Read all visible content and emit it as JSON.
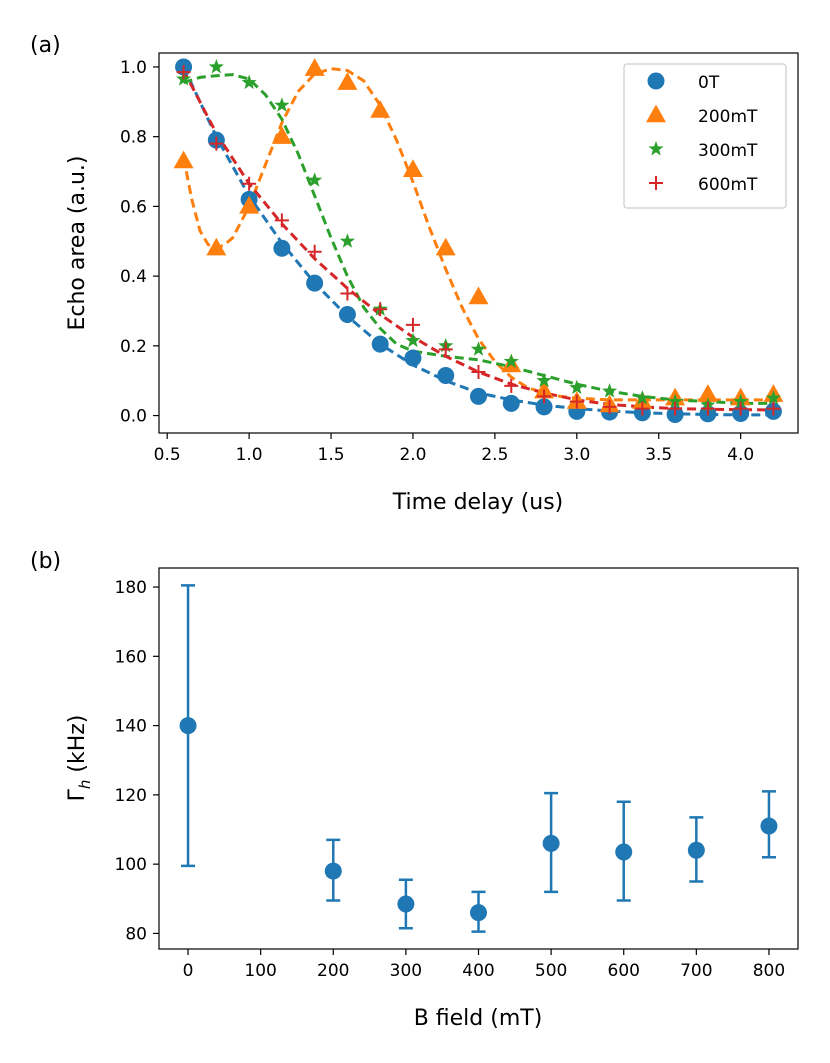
{
  "chart_data": [
    {
      "panel_label": "(a)",
      "type": "scatter",
      "xlabel": "Time delay (us)",
      "ylabel": "Echo area (a.u.)",
      "xlim": [
        0.45,
        4.35
      ],
      "ylim": [
        -0.05,
        1.04
      ],
      "xticks": [
        "0.5",
        "1.0",
        "1.5",
        "2.0",
        "2.5",
        "3.0",
        "3.5",
        "4.0"
      ],
      "yticks": [
        "0.0",
        "0.2",
        "0.4",
        "0.6",
        "0.8",
        "1.0"
      ],
      "legend_position": "top-right",
      "series": [
        {
          "name": "0T",
          "color": "#1f77b4",
          "marker": "circle",
          "x": [
            0.6,
            0.8,
            1.0,
            1.2,
            1.4,
            1.6,
            1.8,
            2.0,
            2.2,
            2.4,
            2.6,
            2.8,
            3.0,
            3.2,
            3.4,
            3.6,
            3.8,
            4.0,
            4.2
          ],
          "y": [
            1.0,
            0.79,
            0.62,
            0.48,
            0.38,
            0.29,
            0.205,
            0.165,
            0.115,
            0.055,
            0.035,
            0.025,
            0.012,
            0.01,
            0.008,
            0.003,
            0.005,
            0.006,
            0.012
          ],
          "fit_x": [
            0.6,
            0.8,
            1.0,
            1.2,
            1.4,
            1.6,
            1.8,
            2.0,
            2.2,
            2.4,
            2.6,
            2.8,
            3.0,
            3.2,
            3.4,
            3.6,
            3.8,
            4.0,
            4.2
          ],
          "fit_y": [
            1.0,
            0.8,
            0.63,
            0.495,
            0.38,
            0.285,
            0.205,
            0.145,
            0.1,
            0.065,
            0.045,
            0.03,
            0.02,
            0.013,
            0.008,
            0.005,
            0.003,
            0.002,
            0.002
          ]
        },
        {
          "name": "200mT",
          "color": "#ff7f0e",
          "marker": "triangle",
          "x": [
            0.6,
            0.8,
            1.0,
            1.2,
            1.4,
            1.6,
            1.8,
            2.0,
            2.2,
            2.4,
            2.6,
            2.8,
            3.0,
            3.2,
            3.4,
            3.6,
            3.8,
            4.0,
            4.2
          ],
          "y": [
            0.73,
            0.48,
            0.6,
            0.8,
            0.995,
            0.955,
            0.875,
            0.705,
            0.48,
            0.34,
            0.145,
            0.07,
            0.04,
            0.03,
            0.04,
            0.05,
            0.06,
            0.05,
            0.06
          ],
          "fit_x": [
            0.6,
            0.65,
            0.7,
            0.75,
            0.8,
            0.85,
            0.9,
            1.0,
            1.1,
            1.2,
            1.3,
            1.4,
            1.5,
            1.6,
            1.7,
            1.8,
            1.9,
            2.0,
            2.1,
            2.2,
            2.3,
            2.4,
            2.5,
            2.6,
            2.7,
            2.8,
            2.9,
            3.0,
            3.2,
            3.4,
            3.6,
            3.8,
            4.0,
            4.2
          ],
          "fit_y": [
            0.74,
            0.62,
            0.53,
            0.49,
            0.48,
            0.49,
            0.51,
            0.6,
            0.72,
            0.84,
            0.93,
            0.98,
            0.995,
            0.99,
            0.96,
            0.89,
            0.79,
            0.67,
            0.54,
            0.42,
            0.31,
            0.22,
            0.155,
            0.11,
            0.08,
            0.065,
            0.055,
            0.05,
            0.045,
            0.045,
            0.045,
            0.045,
            0.045,
            0.045
          ]
        },
        {
          "name": "300mT",
          "color": "#2ca02c",
          "marker": "star",
          "x": [
            0.6,
            0.8,
            1.0,
            1.2,
            1.4,
            1.6,
            1.8,
            2.0,
            2.2,
            2.4,
            2.6,
            2.8,
            3.0,
            3.2,
            3.4,
            3.6,
            3.8,
            4.0,
            4.2
          ],
          "y": [
            0.965,
            1.0,
            0.955,
            0.89,
            0.675,
            0.5,
            0.305,
            0.215,
            0.2,
            0.19,
            0.155,
            0.1,
            0.08,
            0.07,
            0.05,
            0.04,
            0.03,
            0.04,
            0.05
          ],
          "fit_x": [
            0.6,
            0.7,
            0.8,
            0.9,
            1.0,
            1.1,
            1.2,
            1.3,
            1.4,
            1.5,
            1.6,
            1.7,
            1.8,
            1.9,
            2.0,
            2.2,
            2.4,
            2.6,
            2.8,
            3.0,
            3.2,
            3.4,
            3.6,
            3.8,
            4.0,
            4.2
          ],
          "fit_y": [
            0.955,
            0.97,
            0.975,
            0.978,
            0.965,
            0.92,
            0.85,
            0.75,
            0.63,
            0.51,
            0.4,
            0.31,
            0.25,
            0.205,
            0.185,
            0.17,
            0.16,
            0.14,
            0.115,
            0.09,
            0.07,
            0.055,
            0.045,
            0.04,
            0.035,
            0.035
          ]
        },
        {
          "name": "600mT",
          "color": "#d62728",
          "marker": "plus",
          "x": [
            0.6,
            0.8,
            1.0,
            1.2,
            1.4,
            1.6,
            1.8,
            2.0,
            2.2,
            2.4,
            2.6,
            2.8,
            3.0,
            3.2,
            3.4,
            3.6,
            3.8,
            4.0,
            4.2
          ],
          "y": [
            0.985,
            0.78,
            0.665,
            0.56,
            0.47,
            0.35,
            0.305,
            0.26,
            0.19,
            0.125,
            0.085,
            0.055,
            0.04,
            0.025,
            0.02,
            0.02,
            0.02,
            0.02,
            0.02
          ],
          "fit_x": [
            0.6,
            0.8,
            1.0,
            1.2,
            1.4,
            1.6,
            1.8,
            2.0,
            2.2,
            2.4,
            2.6,
            2.8,
            3.0,
            3.2,
            3.4,
            3.6,
            3.8,
            4.0,
            4.2
          ],
          "fit_y": [
            0.99,
            0.81,
            0.665,
            0.55,
            0.45,
            0.365,
            0.29,
            0.225,
            0.17,
            0.125,
            0.09,
            0.065,
            0.045,
            0.032,
            0.025,
            0.02,
            0.018,
            0.017,
            0.016
          ]
        }
      ]
    },
    {
      "panel_label": "(b)",
      "type": "scatter",
      "xlabel": "B field (mT)",
      "ylabel": "Γh (kHz)",
      "xlim": [
        -40,
        840
      ],
      "ylim": [
        75.5,
        185.5
      ],
      "xticks": [
        "0",
        "100",
        "200",
        "300",
        "400",
        "500",
        "600",
        "700",
        "800"
      ],
      "yticks": [
        "80",
        "100",
        "120",
        "140",
        "160",
        "180"
      ],
      "series": [
        {
          "name": "Γh",
          "color": "#1f77b4",
          "marker": "circle",
          "x": [
            0,
            200,
            300,
            400,
            500,
            600,
            700,
            800
          ],
          "y": [
            140,
            98,
            88.5,
            86,
            106,
            103.5,
            104,
            111
          ],
          "yerr_low": [
            99.5,
            89.5,
            81.5,
            80.5,
            92,
            89.5,
            95,
            102
          ],
          "yerr_high": [
            180.5,
            107,
            95.5,
            92,
            120.5,
            118,
            113.5,
            121
          ]
        }
      ]
    }
  ]
}
